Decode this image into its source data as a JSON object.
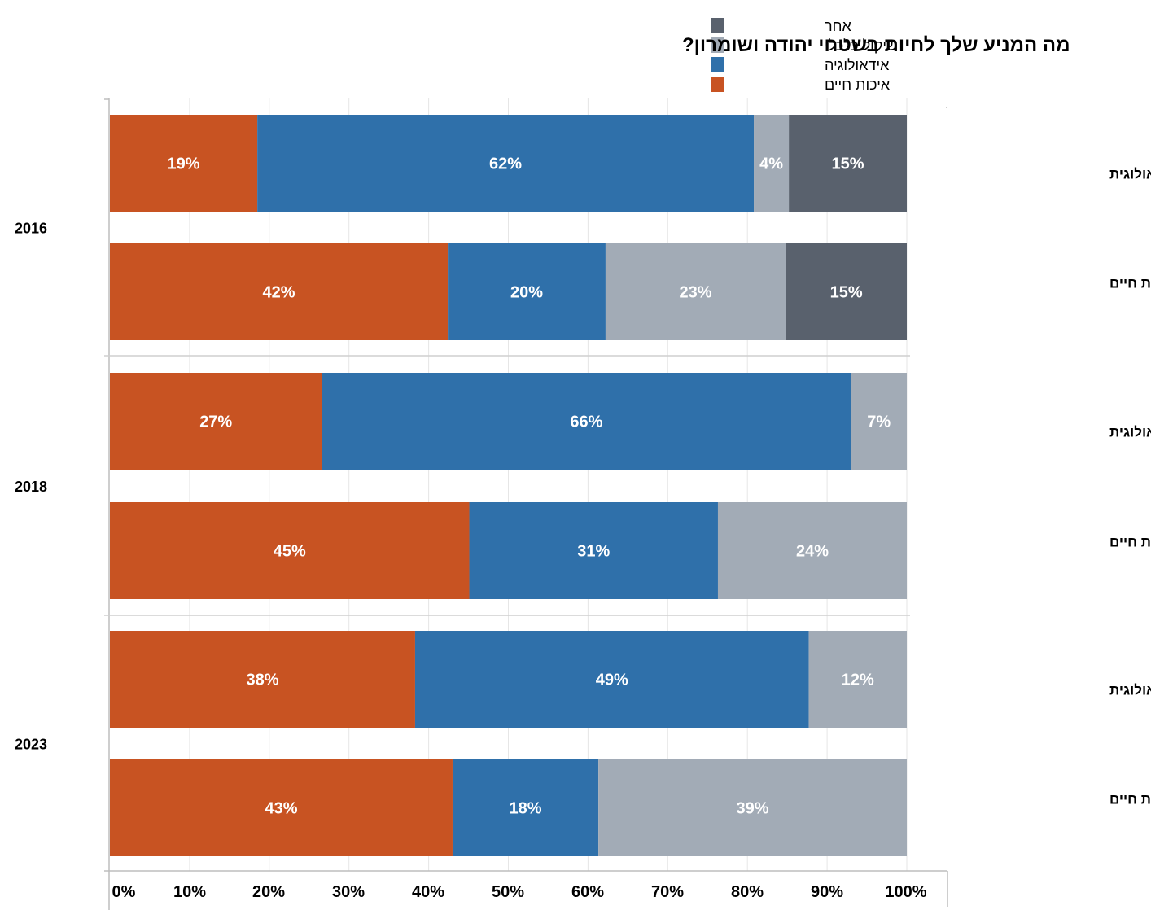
{
  "chart_data": {
    "type": "bar",
    "orientation": "horizontal",
    "stacked": true,
    "percent": true,
    "title": "מה המניע שלך לחיות בשטחי יהודה ושומרון?",
    "xlabel": "",
    "ylabel": "",
    "xlim": [
      0,
      100
    ],
    "x_ticks": [
      "0%",
      "10%",
      "20%",
      "30%",
      "40%",
      "50%",
      "60%",
      "70%",
      "80%",
      "90%",
      "100%"
    ],
    "grid": true,
    "legend_position": "top-right",
    "series_order": [
      "איכות חיים",
      "אידאולוגיה",
      "שיקול כלכלי",
      "אחר"
    ],
    "legend": [
      {
        "name": "אחר",
        "color": "#59616d"
      },
      {
        "name": "שיקול כלכלי",
        "color": "#a2abb6"
      },
      {
        "name": "אידאולוגיה",
        "color": "#2f70aa"
      },
      {
        "name": "איכות חיים",
        "color": "#c85322"
      }
    ],
    "colors": {
      "איכות חיים": "#c85322",
      "אידאולוגיה": "#2f70aa",
      "שיקול כלכלי": "#a2abb6",
      "אחר": "#59616d"
    },
    "groups": [
      {
        "year": "2016",
        "rows": [
          {
            "category": "התיישבות אידיאולוגית",
            "values": [
              18.5,
              62.3,
              4.4,
              14.8
            ],
            "labels": [
              "19%",
              "62%",
              "4%",
              "15%"
            ]
          },
          {
            "category": "התיישבות איכות חיים",
            "values": [
              42.4,
              19.8,
              22.6,
              15.2
            ],
            "labels": [
              "42%",
              "20%",
              "23%",
              "15%"
            ]
          }
        ]
      },
      {
        "year": "2018",
        "rows": [
          {
            "category": "התיישבות אידיאולוגית",
            "values": [
              26.6,
              66.4,
              7.0,
              0
            ],
            "labels": [
              "27%",
              "66%",
              "7%",
              ""
            ]
          },
          {
            "category": "התיישבות איכות חיים",
            "values": [
              45.1,
              31.2,
              23.7,
              0
            ],
            "labels": [
              "45%",
              "31%",
              "24%",
              ""
            ]
          }
        ]
      },
      {
        "year": "2023",
        "rows": [
          {
            "category": "התיישבות אידיאולוגית",
            "values": [
              38.3,
              49.4,
              12.3,
              0
            ],
            "labels": [
              "38%",
              "49%",
              "12%",
              ""
            ]
          },
          {
            "category": "התיישבות איכות חיים",
            "values": [
              43.0,
              18.3,
              38.7,
              0
            ],
            "labels": [
              "43%",
              "18%",
              "39%",
              ""
            ]
          }
        ]
      }
    ]
  }
}
